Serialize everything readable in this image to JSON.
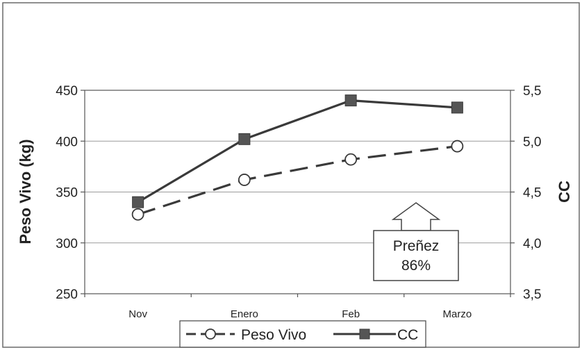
{
  "chart_data": {
    "type": "line",
    "categories": [
      "Nov",
      "Enero",
      "Feb",
      "Marzo"
    ],
    "ylabel": "Peso Vivo (kg)",
    "y2label": "CC",
    "ylim": [
      250,
      450
    ],
    "yticks": [
      "250",
      "300",
      "350",
      "400",
      "450"
    ],
    "y2lim": [
      3.5,
      5.5
    ],
    "y2ticks": [
      "3,5",
      "4,0",
      "4,5",
      "5,0",
      "5,5"
    ],
    "grid": true,
    "legend_position": "bottom",
    "series": [
      {
        "name": "Peso Vivo",
        "axis": "left",
        "values": [
          328,
          362,
          382,
          395
        ],
        "color": "#3a3a3a",
        "style": "dashed",
        "marker": "circle"
      },
      {
        "name": "CC",
        "axis": "right",
        "values": [
          4.4,
          5.02,
          5.4,
          5.33
        ],
        "color": "#3a3a3a",
        "style": "solid",
        "marker": "square"
      }
    ],
    "annotation": {
      "line1": "Preñez",
      "line2": "86%"
    }
  }
}
